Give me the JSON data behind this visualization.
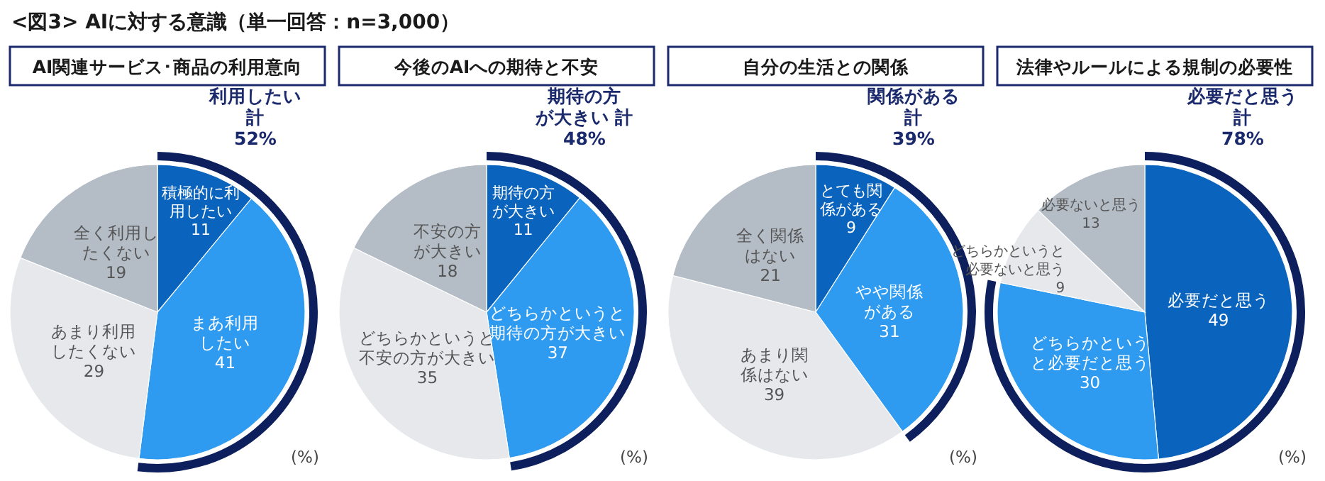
{
  "chart_data": [
    {
      "type": "pie",
      "title": "AI関連サービス･商品の利用意向",
      "categories": [
        "積極的に利用したい",
        "まあ利用したい",
        "あまり利用したくない",
        "全く利用したくない"
      ],
      "values": [
        11,
        41,
        29,
        19
      ],
      "colors": [
        "#0a64be",
        "#2e9bf0",
        "#e6e8ec",
        "#b4bcc6"
      ],
      "data_labels": true,
      "annotations": [
        "利用したい計52%",
        "(%)",
        "<図3> AIに対する意識（単一回答：n=3,000）"
      ]
    },
    {
      "type": "pie",
      "title": "今後のAIへの期待と不安",
      "categories": [
        "期待の方が大きい",
        "どちらかというと期待の方が大きい",
        "どちらかというと不安の方が大きい",
        "不安の方が大きい"
      ],
      "values": [
        11,
        37,
        35,
        18
      ],
      "colors": [
        "#0a64be",
        "#2e9bf0",
        "#e6e8ec",
        "#b4bcc6"
      ],
      "data_labels": true,
      "annotations": [
        "期待の方が大きい 計48%",
        "(%)"
      ]
    },
    {
      "type": "pie",
      "title": "自分の生活との関係",
      "categories": [
        "とても関係がある",
        "やや関係がある",
        "あまり関係はない",
        "全く関係はない"
      ],
      "values": [
        9,
        31,
        39,
        21
      ],
      "colors": [
        "#0a64be",
        "#2e9bf0",
        "#e6e8ec",
        "#b4bcc6"
      ],
      "data_labels": true,
      "annotations": [
        "関係がある計39%",
        "(%)"
      ]
    },
    {
      "type": "pie",
      "title": "法律やルールによる規制の必要性",
      "categories": [
        "必要だと思う",
        "どちらかというと必要だと思う",
        "どちらかというと必要ないと思う",
        "必要ないと思う"
      ],
      "values": [
        49,
        30,
        9,
        13
      ],
      "colors": [
        "#0a64be",
        "#2e9bf0",
        "#e6e8ec",
        "#b4bcc6"
      ],
      "data_labels": true,
      "annotations": [
        "必要だと思う計78%",
        "(%)"
      ]
    }
  ]
}
